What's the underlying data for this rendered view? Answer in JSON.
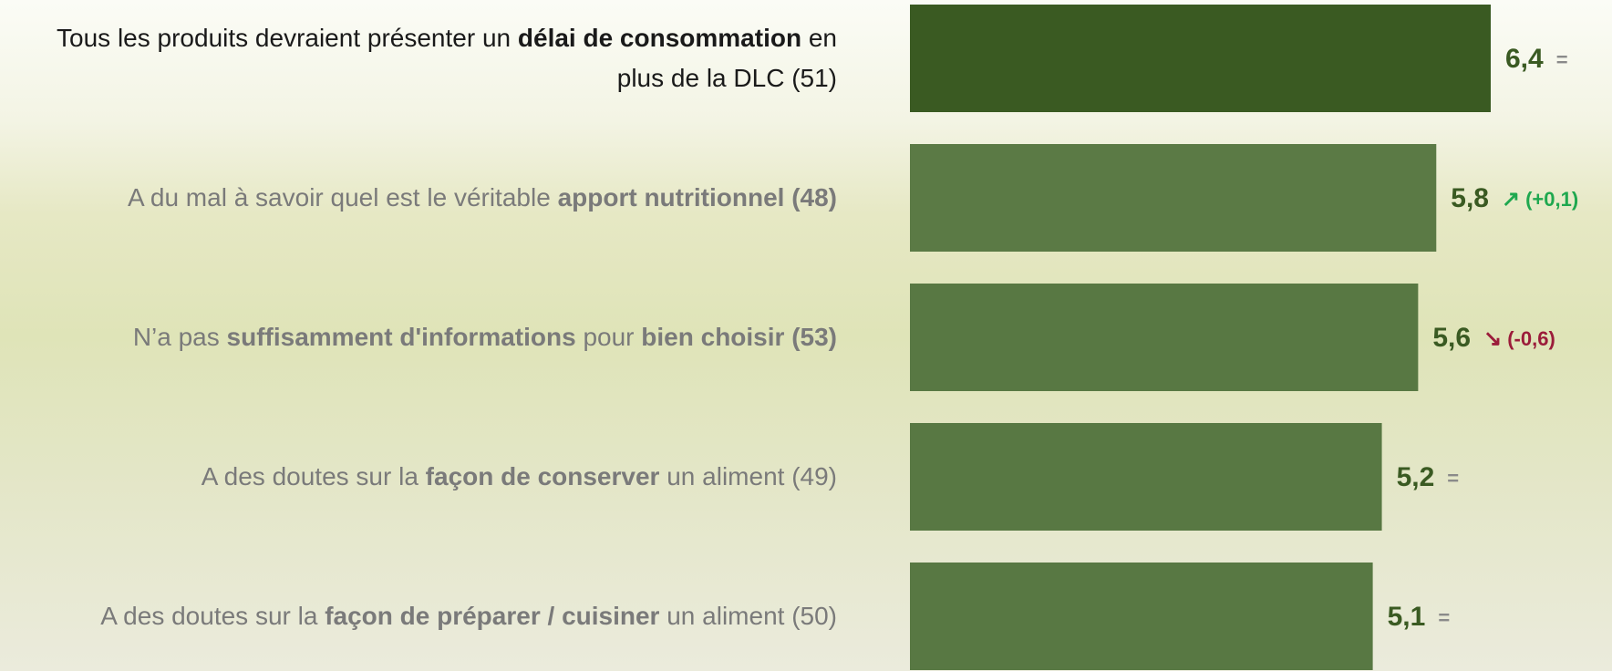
{
  "chart_data": {
    "type": "bar",
    "orientation": "horizontal",
    "categories": [
      [
        {
          "text": "Tous les produits devraient présenter un ",
          "bold": false
        },
        {
          "text": "délai de consommation",
          "bold": true
        },
        {
          "text": " en plus de la DLC (51)",
          "bold": false
        }
      ],
      [
        {
          "text": "A du mal à savoir quel est le véritable ",
          "bold": false
        },
        {
          "text": "apport nutritionnel (48)",
          "bold": true
        }
      ],
      [
        {
          "text": "N’a pas ",
          "bold": false
        },
        {
          "text": "suffisamment d'informations",
          "bold": true
        },
        {
          "text": " pour ",
          "bold": false
        },
        {
          "text": "bien choisir (53)",
          "bold": true
        }
      ],
      [
        {
          "text": "A des doutes sur la ",
          "bold": false
        },
        {
          "text": "façon de conserver",
          "bold": true
        },
        {
          "text": " un aliment (49)",
          "bold": false
        }
      ],
      [
        {
          "text": "A des doutes sur la ",
          "bold": false
        },
        {
          "text": "façon de préparer / cuisiner",
          "bold": true
        },
        {
          "text": " un aliment (50)",
          "bold": false
        }
      ]
    ],
    "label_colors": [
      "#1a1a1a",
      "#7a7a7a",
      "#7a7a7a",
      "#7a7a7a",
      "#7a7a7a"
    ],
    "values": [
      6.4,
      5.8,
      5.6,
      5.2,
      5.1
    ],
    "value_labels": [
      "6,4",
      "5,8",
      "5,6",
      "5,2",
      "5,1"
    ],
    "colors": [
      "#3a5a22",
      "#5b7a45",
      "#587843",
      "#587843",
      "#587843"
    ],
    "value_color": "#3a5a22",
    "change_arrows": [
      null,
      "↗",
      "↘",
      null,
      null
    ],
    "change_labels": [
      "=",
      "(+0,1)",
      "(-0,6)",
      "=",
      "="
    ],
    "change_colors": [
      "#8a8a8a",
      "#1fa84f",
      "#9b1c3a",
      "#8a8a8a",
      "#8a8a8a"
    ]
  }
}
